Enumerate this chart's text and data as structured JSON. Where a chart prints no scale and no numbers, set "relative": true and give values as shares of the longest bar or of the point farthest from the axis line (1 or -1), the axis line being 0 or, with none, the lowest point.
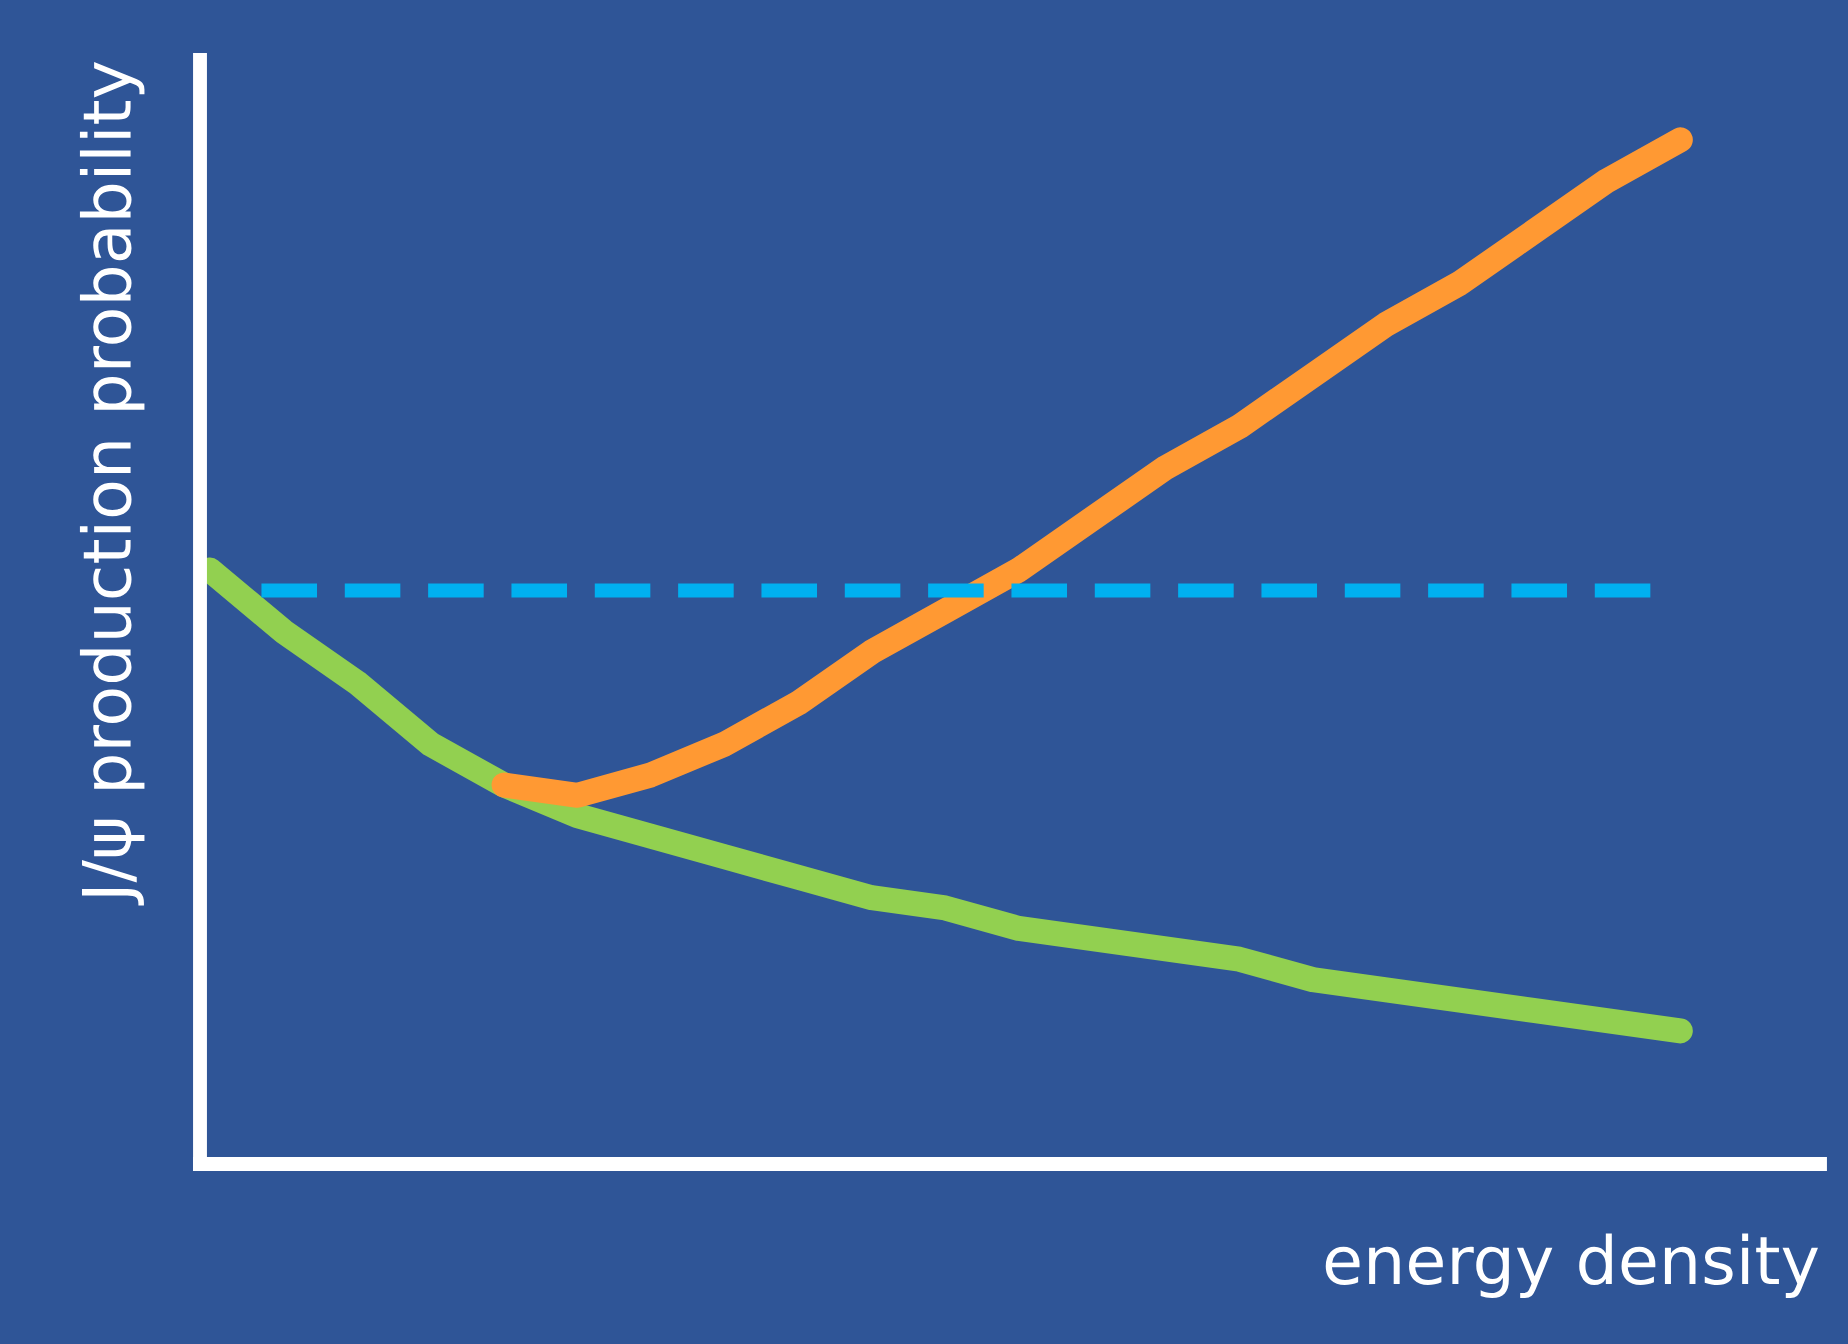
{
  "chart_data": {
    "type": "line",
    "relative": true,
    "xlabel": "energy density",
    "ylabel": "J/ψ production probability",
    "categories": [
      null,
      null,
      null,
      null,
      null,
      null,
      null,
      null,
      null,
      null,
      null,
      null,
      null,
      null,
      null,
      null,
      null,
      null,
      null,
      null,
      null
    ],
    "series": [
      {
        "color": "#92d050",
        "values": [
          0.58,
          0.52,
          0.47,
          0.41,
          0.37,
          0.34,
          0.32,
          0.3,
          0.28,
          0.26,
          0.25,
          0.23,
          0.22,
          0.21,
          0.2,
          0.18,
          0.17,
          0.16,
          0.15,
          0.14,
          0.13
        ]
      },
      {
        "color": "#ff9933",
        "values": [
          null,
          null,
          null,
          null,
          0.37,
          0.36,
          0.38,
          0.41,
          0.45,
          0.5,
          0.54,
          0.58,
          0.63,
          0.68,
          0.72,
          0.77,
          0.82,
          0.86,
          0.91,
          0.96,
          1.0
        ]
      }
    ],
    "ref_lines": [
      {
        "axis": "y",
        "value": 0.56,
        "label": null,
        "color": "#00b0f0",
        "line_style": "dashed"
      }
    ],
    "marker": "none",
    "line_style": "solid"
  }
}
